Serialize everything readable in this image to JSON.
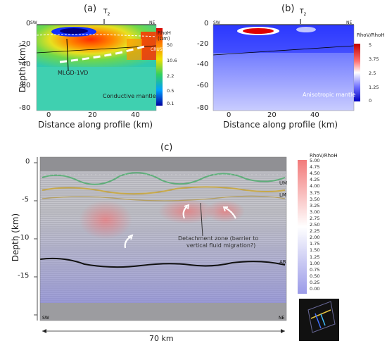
{
  "panel_a": {
    "label": "(a)",
    "t_marker": "T",
    "t_sub": "2",
    "sw": "SW",
    "ne": "NE",
    "y_axis": "Depth (km)",
    "x_axis": "Distance along profile (km)",
    "y_ticks": [
      "0",
      "-20",
      "-40",
      "-60",
      "-80"
    ],
    "x_ticks": [
      "0",
      "20",
      "40"
    ],
    "annotations": {
      "ab": "AB",
      "crust": "CRUST",
      "mlgd": "MLGD-1VD",
      "mantle": "Conductive mantle"
    },
    "colorbar": {
      "title": "RhoH",
      "unit": "(Ωm)",
      "ticks": [
        "50",
        "10.6",
        "2.2",
        "0.5",
        "0.1"
      ]
    }
  },
  "panel_b": {
    "label": "(b)",
    "t_marker": "T",
    "t_sub": "2",
    "sw": "SW",
    "ne": "NE",
    "x_axis": "Distance along profile (km)",
    "y_ticks": [
      "0",
      "-20",
      "-40",
      "-60",
      "-80"
    ],
    "x_ticks": [
      "0",
      "20",
      "40"
    ],
    "annotations": {
      "mantle": "Anisotropic mantle"
    },
    "colorbar": {
      "title": "RhoV/RhoH",
      "ticks": [
        "5",
        "3.75",
        "2.5",
        "1.25",
        "0"
      ]
    }
  },
  "panel_c": {
    "label": "(c)",
    "y_axis": "Depth (km)",
    "y_ticks": [
      "0",
      "-5",
      "-10",
      "-15"
    ],
    "sw": "SW",
    "ne": "NE",
    "annotations": {
      "um": "UM",
      "lm": "LM",
      "ab": "AB",
      "detachment_1": "Detachment zone (barrier to",
      "detachment_2": "vertical fluid migration?)"
    },
    "scale": "70 km",
    "colorbar": {
      "title": "RhoV/RhoH",
      "ticks": [
        "5.00",
        "4.75",
        "4.50",
        "4.25",
        "4.00",
        "3.75",
        "3.50",
        "3.25",
        "3.00",
        "2.75",
        "2.50",
        "2.25",
        "2.00",
        "1.75",
        "1.50",
        "1.25",
        "1.00",
        "0.75",
        "0.50",
        "0.25",
        "0.00"
      ]
    }
  }
}
